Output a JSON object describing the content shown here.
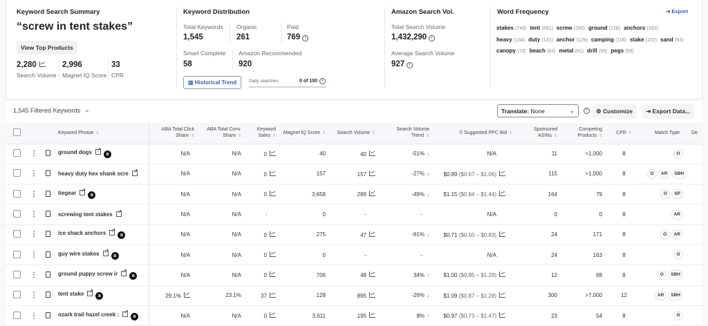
{
  "summary": {
    "heading": "Keyword Search Summary",
    "query": "“screw in tent stakes”",
    "view_top_products": "View Top Products",
    "search_volume": "2,280",
    "search_volume_label": "Search Volume",
    "magnet_iq": "2,996",
    "magnet_iq_label": "Magnet IQ Score",
    "cpr": "33",
    "cpr_label": "CPR"
  },
  "distribution": {
    "heading": "Keyword Distribution",
    "total_label": "Total Keywords",
    "total": "1,545",
    "organic_label": "Organic",
    "organic": "261",
    "paid_label": "Paid",
    "paid": "769",
    "smart_label": "Smart Complete",
    "smart": "58",
    "amazon_rec_label": "Amazon Recommended",
    "amazon_rec": "920",
    "historical_trend": "Historical Trend",
    "daily_label": "Daily searches",
    "daily_value": "0 of 100",
    "daily_progress": 0
  },
  "amazon": {
    "heading": "Amazon Search Vol.",
    "total_label": "Total Search Volume",
    "total": "1,432,290",
    "avg_label": "Average Search Volume",
    "avg": "927"
  },
  "word_frequency": {
    "heading": "Word Frequency",
    "export": "Export",
    "words": [
      [
        "stakes",
        "(745)"
      ],
      [
        "tent",
        "(691)"
      ],
      [
        "screw",
        "(290)"
      ],
      [
        "ground",
        "(228)"
      ],
      [
        "anchors",
        "(182)"
      ],
      [
        "heavy",
        "(134)"
      ],
      [
        "duty",
        "(131)"
      ],
      [
        "anchor",
        "(129)"
      ],
      [
        "camping",
        "(118)"
      ],
      [
        "stake",
        "(102)"
      ],
      [
        "sand",
        "(83)"
      ],
      [
        "canopy",
        "(73)"
      ],
      [
        "beach",
        "(63)"
      ],
      [
        "metal",
        "(61)"
      ],
      [
        "drill",
        "(60)"
      ],
      [
        "pegs",
        "(59)"
      ]
    ]
  },
  "toolbar": {
    "filtered": "1,545 Filtered Keywords",
    "translate_label": "Translate:",
    "translate_value": "None",
    "customize": "Customize",
    "export_data": "Export Data..."
  },
  "table": {
    "headers": [
      "Keyword Phrase",
      "ABA Total Click Share",
      "ABA Total Conv. Share",
      "Keyword Sales",
      "Magnet IQ Score",
      "Search Volume",
      "Search Volume Trend",
      "Suggested PPC Bid",
      "Sponsored ASINs",
      "Competing Products",
      "CPR",
      "Match Type",
      "De"
    ],
    "rows": [
      {
        "kw": "ground dogs",
        "amz": true,
        "click": "N/A",
        "conv": "N/A",
        "sales": "0",
        "iq": "40",
        "sv": "40",
        "trend": "-51%",
        "dir": "down",
        "bid": "",
        "range": "",
        "bid_na": "N/A",
        "asins": "11",
        "comp": ">1,000",
        "cpr": "8",
        "match": [
          "O"
        ]
      },
      {
        "kw": "heavy duty hex shank scre",
        "amz": false,
        "click": "N/A",
        "conv": "N/A",
        "sales": "0",
        "iq": "157",
        "sv": "157",
        "trend": "-27%",
        "dir": "down",
        "bid": "$0.89",
        "range": "($0.67 – $1.06)",
        "bid_na": "",
        "asins": "115",
        "comp": ">1,000",
        "cpr": "8",
        "match": [
          "O",
          "AR",
          "SBH"
        ]
      },
      {
        "kw": "tiegear",
        "amz": true,
        "click": "N/A",
        "conv": "N/A",
        "sales": "0",
        "iq": "3,658",
        "sv": "289",
        "trend": "-49%",
        "dir": "down",
        "bid": "$1.15",
        "range": "($0.84 – $1.44)",
        "bid_na": "",
        "asins": "164",
        "comp": "79",
        "cpr": "8",
        "match": [
          "O",
          "SP"
        ]
      },
      {
        "kw": "screwing tent stakes",
        "amz": false,
        "click": "N/A",
        "conv": "N/A",
        "sales": "-",
        "iq": "0",
        "sv": "-",
        "trend": "-",
        "dir": "",
        "bid": "",
        "range": "",
        "bid_na": "N/A",
        "asins": "0",
        "comp": "0",
        "cpr": "8",
        "match": [
          "AR"
        ]
      },
      {
        "kw": "ice shack anchors",
        "amz": true,
        "click": "N/A",
        "conv": "N/A",
        "sales": "0",
        "iq": "275",
        "sv": "47",
        "trend": "-61%",
        "dir": "down",
        "bid": "$0.71",
        "range": "($0.50 – $0.83)",
        "bid_na": "",
        "asins": "24",
        "comp": "171",
        "cpr": "8",
        "match": [
          "O",
          "AR"
        ]
      },
      {
        "kw": "guy wire stakes",
        "amz": true,
        "click": "N/A",
        "conv": "N/A",
        "sales": "0",
        "iq": "0",
        "sv": "-",
        "trend": "-",
        "dir": "",
        "bid": "",
        "range": "",
        "bid_na": "N/A",
        "asins": "24",
        "comp": "163",
        "cpr": "8",
        "match": [
          "O"
        ]
      },
      {
        "kw": "ground puppy screw ir",
        "amz": true,
        "click": "N/A",
        "conv": "N/A",
        "sales": "0",
        "iq": "706",
        "sv": "48",
        "trend": "34%",
        "dir": "up",
        "bid": "$1.00",
        "range": "($0.85 – $1.28)",
        "bid_na": "",
        "asins": "12",
        "comp": "68",
        "cpr": "8",
        "match": [
          "O",
          "SBH"
        ]
      },
      {
        "kw": "tent stake",
        "amz": true,
        "click": "29.1%",
        "conv": "23.1%",
        "sales": "37",
        "iq": "128",
        "sv": "895",
        "trend": "-26%",
        "dir": "down",
        "bid": "$1.09",
        "range": "($0.87 – $1.28)",
        "bid_na": "",
        "asins": "300",
        "comp": ">7,000",
        "cpr": "12",
        "match": [
          "AR",
          "SBH"
        ]
      },
      {
        "kw": "ozark trail hazel creek :",
        "amz": true,
        "click": "N/A",
        "conv": "N/A",
        "sales": "0",
        "iq": "3,611",
        "sv": "195",
        "trend": "8%",
        "dir": "up",
        "bid": "$0.97",
        "range": "($0.73 – $1.47)",
        "bid_na": "",
        "asins": "23",
        "comp": "54",
        "cpr": "8",
        "match": [
          "O"
        ]
      }
    ]
  },
  "colors": {
    "accent": "#2f5fb3",
    "down": "#d9534f",
    "up": "#2ba36a"
  }
}
